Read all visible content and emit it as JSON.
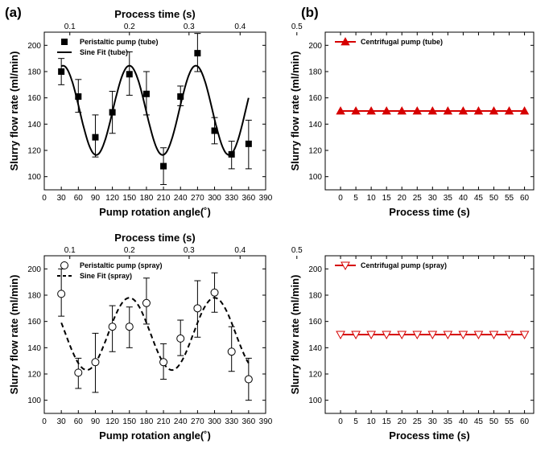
{
  "labels": {
    "panel_a": "(a)",
    "panel_b": "(b)"
  },
  "chart_data": [
    {
      "id": "top-left",
      "type": "scatter",
      "xlabel": "Pump rotation angle(˚)",
      "ylabel": "Slurry flow rate (ml/min)",
      "top_xlabel": "Process time (s)",
      "xlim": [
        0,
        390
      ],
      "ylim": [
        90,
        210
      ],
      "xticks": [
        0,
        30,
        60,
        90,
        120,
        150,
        180,
        210,
        240,
        270,
        300,
        330,
        360,
        390
      ],
      "yticks": [
        100,
        120,
        140,
        160,
        180,
        200
      ],
      "top_ticks": [
        {
          "label": "0.1",
          "x": 45
        },
        {
          "label": "0.2",
          "x": 150
        },
        {
          "label": "0.3",
          "x": 255
        },
        {
          "label": "0.4",
          "x": 345
        },
        {
          "label": "0.5",
          "x": 445
        }
      ],
      "legend": [
        {
          "label": "Peristaltic pump (tube)",
          "kind": "square"
        },
        {
          "label": "Sine Fit (tube)",
          "kind": "solid"
        }
      ],
      "series": [
        {
          "name": "Peristaltic pump (tube)",
          "marker": "square-filled",
          "x": [
            30,
            60,
            90,
            120,
            150,
            180,
            210,
            240,
            270,
            300,
            330,
            360
          ],
          "y": [
            180,
            161,
            130,
            149,
            178,
            163,
            108,
            161,
            194,
            135,
            117,
            125
          ],
          "yerr_low": [
            170,
            149,
            115,
            133,
            162,
            147,
            94,
            154,
            180,
            125,
            106,
            106
          ],
          "yerr_high": [
            190,
            174,
            147,
            165,
            195,
            180,
            122,
            169,
            209,
            145,
            127,
            143
          ]
        }
      ],
      "fit": {
        "name": "Sine Fit (tube)",
        "style": "solid",
        "offset": 150.5,
        "amplitude": 34,
        "period": 117,
        "peak_at": 150,
        "x_start": 30,
        "x_end": 360
      }
    },
    {
      "id": "top-right",
      "type": "line",
      "xlabel": "Process time (s)",
      "ylabel": "Slurry flow rate (ml/min)",
      "xlim": [
        -5,
        63
      ],
      "ylim": [
        90,
        210
      ],
      "xticks": [
        0,
        5,
        10,
        15,
        20,
        25,
        30,
        35,
        40,
        45,
        50,
        55,
        60
      ],
      "yticks": [
        100,
        120,
        140,
        160,
        180,
        200
      ],
      "legend": [
        {
          "label": "Centrifugal pump (tube)",
          "kind": "triangle-up-filled"
        }
      ],
      "series": [
        {
          "name": "Centrifugal pump (tube)",
          "marker": "triangle-up-filled",
          "color": "#d60000",
          "x": [
            0,
            5,
            10,
            15,
            20,
            25,
            30,
            35,
            40,
            45,
            50,
            55,
            60
          ],
          "y": [
            150,
            150,
            150,
            150,
            150,
            150,
            150,
            150,
            150,
            150,
            150,
            150,
            150
          ]
        }
      ]
    },
    {
      "id": "bottom-left",
      "type": "scatter",
      "xlabel": "Pump rotation angle(˚)",
      "ylabel": "Slurry flow rate (ml/min)",
      "top_xlabel": "Process time (s)",
      "xlim": [
        0,
        390
      ],
      "ylim": [
        90,
        210
      ],
      "xticks": [
        0,
        30,
        60,
        90,
        120,
        150,
        180,
        210,
        240,
        270,
        300,
        330,
        360,
        390
      ],
      "yticks": [
        100,
        120,
        140,
        160,
        180,
        200
      ],
      "top_ticks": [
        {
          "label": "0.1",
          "x": 45
        },
        {
          "label": "0.2",
          "x": 150
        },
        {
          "label": "0.3",
          "x": 255
        },
        {
          "label": "0.4",
          "x": 345
        },
        {
          "label": "0.5",
          "x": 445
        }
      ],
      "legend": [
        {
          "label": "Peristaltic pump (spray)",
          "kind": "circle"
        },
        {
          "label": "Sine Fit (spray)",
          "kind": "dashed"
        }
      ],
      "series": [
        {
          "name": "Peristaltic pump (spray)",
          "marker": "circle-open",
          "x": [
            30,
            60,
            90,
            120,
            150,
            180,
            210,
            240,
            270,
            300,
            330,
            360
          ],
          "y": [
            181,
            121,
            129,
            156,
            156,
            174,
            129,
            147,
            170,
            182,
            137,
            116
          ],
          "yerr_low": [
            164,
            109,
            106,
            137,
            140,
            158,
            116,
            134,
            148,
            167,
            122,
            100
          ],
          "yerr_high": [
            200,
            132,
            151,
            172,
            171,
            193,
            143,
            161,
            191,
            197,
            156,
            132
          ]
        }
      ],
      "fit": {
        "name": "Sine Fit (spray)",
        "style": "dashed",
        "offset": 150.5,
        "amplitude": 27.5,
        "period": 150,
        "peak_at": 150,
        "x_start": 30,
        "x_end": 360
      }
    },
    {
      "id": "bottom-right",
      "type": "line",
      "xlabel": "Process time (s)",
      "ylabel": "Slurry flow rate (ml/min)",
      "xlim": [
        -5,
        63
      ],
      "ylim": [
        90,
        210
      ],
      "xticks": [
        0,
        5,
        10,
        15,
        20,
        25,
        30,
        35,
        40,
        45,
        50,
        55,
        60
      ],
      "yticks": [
        100,
        120,
        140,
        160,
        180,
        200
      ],
      "legend": [
        {
          "label": "Centrifugal  pump (spray)",
          "kind": "triangle-down-open"
        }
      ],
      "series": [
        {
          "name": "Centrifugal pump (spray)",
          "marker": "triangle-down-open",
          "color": "#d60000",
          "x": [
            0,
            5,
            10,
            15,
            20,
            25,
            30,
            35,
            40,
            45,
            50,
            55,
            60
          ],
          "y": [
            150,
            150,
            150,
            150,
            150,
            150,
            150,
            150,
            150,
            150,
            150,
            150,
            150
          ]
        }
      ]
    }
  ]
}
